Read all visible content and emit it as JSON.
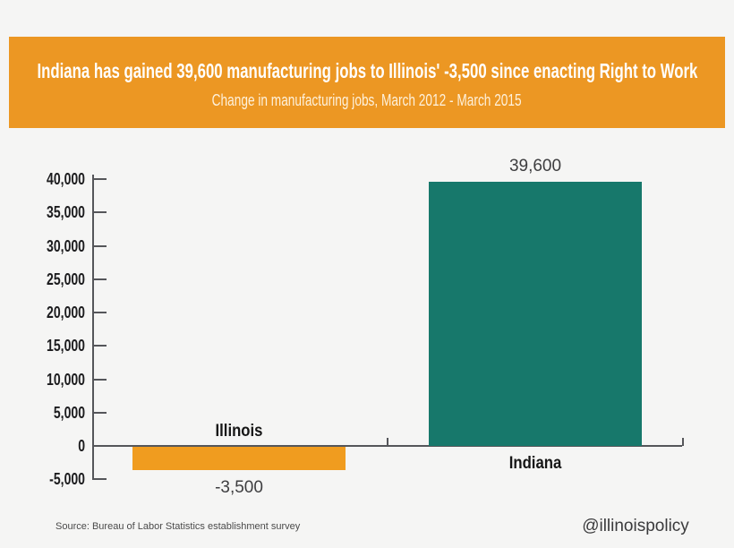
{
  "header": {
    "title": "Indiana has gained 39,600 manufacturing jobs to Illinois' -3,500 since enacting Right to Work",
    "subtitle": "Change in manufacturing jobs, March 2012 - March 2015",
    "background_color": "#ec9723",
    "text_color": "#ffffff"
  },
  "chart_data": {
    "type": "bar",
    "title": "Indiana has gained 39,600 manufacturing jobs to Illinois' -3,500 since enacting Right to Work",
    "subtitle": "Change in manufacturing jobs, March 2012 - March 2015",
    "categories": [
      "Illinois",
      "Indiana"
    ],
    "values": [
      -3500,
      39600
    ],
    "value_labels": [
      "-3,500",
      "39,600"
    ],
    "bar_colors": [
      "#f09c1f",
      "#17786b"
    ],
    "xlabel": "",
    "ylabel": "",
    "ylim": [
      -5000,
      40000
    ],
    "ytick_step": 5000,
    "ytick_labels": [
      "40,000",
      "35,000",
      "30,000",
      "25,000",
      "20,000",
      "15,000",
      "10,000",
      "5,000",
      "0",
      "-5,000"
    ],
    "grid": false,
    "legend": "none",
    "axis_color": "#55565a"
  },
  "footer": {
    "source": "Source: Bureau of Labor Statistics establishment survey",
    "watermark": "@illinoispolicy"
  }
}
